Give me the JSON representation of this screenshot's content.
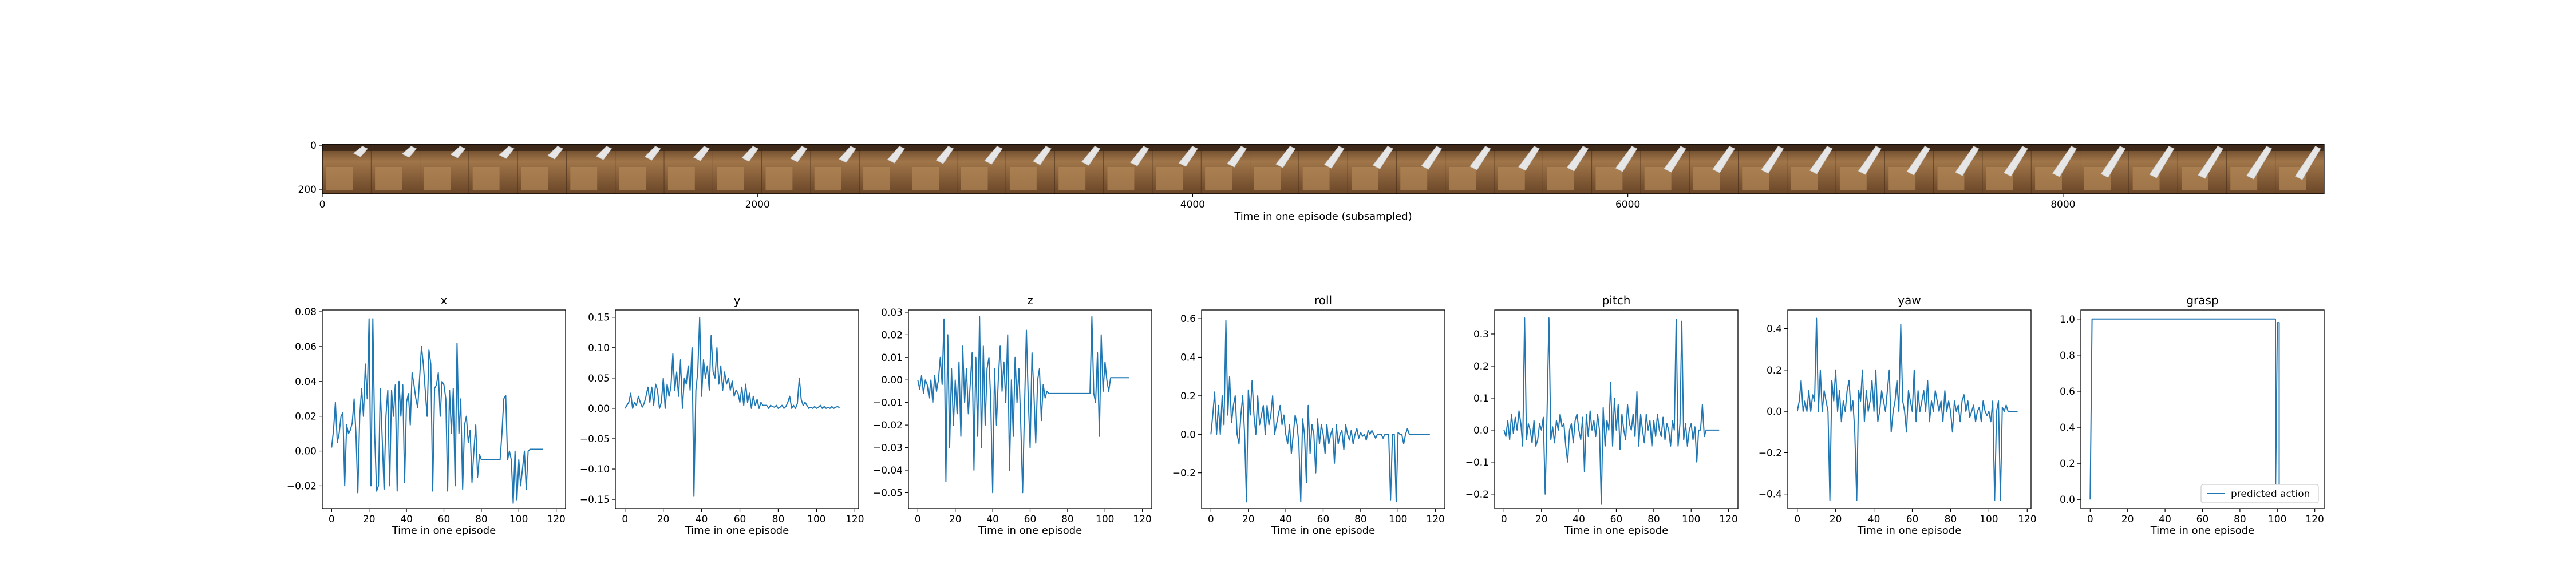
{
  "filmstrip": {
    "xlabel": "Time in one episode (subsampled)",
    "x_ticks": [
      "0",
      "2000",
      "4000",
      "6000",
      "8000"
    ],
    "x_tick_values": [
      0,
      2000,
      4000,
      6000,
      8000
    ],
    "x_range": [
      0,
      9200
    ],
    "y_ticks": [
      "0",
      "200"
    ],
    "frame_count": 41
  },
  "chart_data": [
    {
      "type": "line",
      "title": "x",
      "xlabel": "Time in one episode",
      "ylabel": "",
      "xlim": [
        -5,
        125
      ],
      "ylim": [
        -0.033,
        0.081
      ],
      "x_ticks": [
        0,
        20,
        40,
        60,
        80,
        100,
        120
      ],
      "y_ticks": [
        -0.02,
        0.0,
        0.02,
        0.04,
        0.06,
        0.08
      ],
      "y_tick_labels": [
        "−0.02",
        "0.00",
        "0.02",
        "0.04",
        "0.06",
        "0.08"
      ],
      "series": [
        {
          "values": [
            0.002,
            0.012,
            0.028,
            0.005,
            0.01,
            0.02,
            0.022,
            -0.02,
            0.015,
            0.01,
            0.012,
            0.016,
            0.03,
            0.01,
            -0.024,
            0.02,
            0.036,
            0.02,
            0.05,
            0.03,
            0.076,
            -0.02,
            0.076,
            0.01,
            -0.023,
            -0.02,
            0.036,
            0.008,
            -0.022,
            0.02,
            0.035,
            -0.02,
            0.035,
            0.02,
            0.038,
            -0.023,
            0.04,
            0.02,
            0.038,
            -0.018,
            0.028,
            0.033,
            0.015,
            0.045,
            0.038,
            0.03,
            0.025,
            0.042,
            0.06,
            0.05,
            0.035,
            0.02,
            0.058,
            0.05,
            -0.023,
            0.036,
            0.038,
            0.045,
            0.02,
            0.04,
            0.038,
            0.03,
            -0.023,
            0.035,
            0.01,
            0.036,
            -0.02,
            0.062,
            0.01,
            0.03,
            -0.022,
            0.015,
            0.02,
            0.005,
            0.012,
            -0.018,
            0.0,
            0.015,
            -0.015,
            -0.002,
            -0.005,
            -0.005,
            -0.005,
            -0.005,
            -0.005,
            -0.005,
            -0.005,
            -0.005,
            -0.005,
            -0.005,
            -0.005,
            0.01,
            0.03,
            0.032,
            -0.005,
            0.0,
            -0.005,
            -0.03,
            0.0,
            -0.028,
            -0.005,
            -0.02,
            -0.01,
            0.0,
            -0.022,
            0.0,
            0.001,
            0.001,
            0.001,
            0.001,
            0.001,
            0.001,
            0.001,
            0.001
          ]
        }
      ]
    },
    {
      "type": "line",
      "title": "y",
      "xlabel": "Time in one episode",
      "ylabel": "",
      "xlim": [
        -5,
        122
      ],
      "ylim": [
        -0.165,
        0.162
      ],
      "x_ticks": [
        0,
        20,
        40,
        60,
        80,
        100,
        120
      ],
      "y_ticks": [
        -0.15,
        -0.1,
        -0.05,
        0.0,
        0.05,
        0.1,
        0.15
      ],
      "y_tick_labels": [
        "−0.15",
        "−0.10",
        "−0.05",
        "0.00",
        "0.05",
        "0.10",
        "0.15"
      ],
      "series": [
        {
          "values": [
            0.0,
            0.005,
            0.01,
            0.025,
            0.0,
            0.01,
            0.005,
            0.02,
            0.01,
            0.002,
            0.008,
            0.02,
            0.035,
            0.01,
            0.035,
            0.005,
            0.04,
            0.03,
            0.0,
            0.01,
            0.05,
            0.0,
            0.04,
            0.02,
            0.035,
            0.09,
            0.03,
            0.06,
            0.02,
            0.08,
            0.0,
            0.05,
            0.04,
            0.07,
            0.03,
            0.1,
            -0.145,
            0.03,
            0.06,
            0.15,
            0.02,
            0.08,
            0.05,
            0.07,
            0.03,
            0.12,
            0.06,
            0.05,
            0.1,
            0.04,
            0.07,
            0.03,
            0.06,
            0.04,
            0.05,
            0.03,
            0.045,
            0.02,
            0.03,
            0.025,
            0.01,
            0.035,
            0.005,
            0.04,
            0.01,
            0.025,
            0.0,
            0.02,
            0.005,
            0.015,
            0.0,
            0.01,
            0.005,
            0.005,
            0.005,
            0.0,
            0.005,
            0.003,
            0.002,
            0.005,
            0.0,
            0.002,
            0.005,
            0.0,
            0.003,
            0.01,
            0.02,
            0.0,
            0.005,
            0.0,
            0.008,
            0.05,
            0.015,
            0.005,
            0.01,
            0.005,
            0.0,
            0.002,
            0.0,
            0.003,
            0.0,
            0.002,
            0.005,
            0.0,
            0.003,
            0.0,
            0.002,
            0.0,
            0.003,
            0.0,
            0.002,
            0.003,
            0.001
          ]
        }
      ]
    },
    {
      "type": "line",
      "title": "z",
      "xlabel": "Time in one episode",
      "ylabel": "",
      "xlim": [
        -5,
        125
      ],
      "ylim": [
        -0.057,
        0.031
      ],
      "x_ticks": [
        0,
        20,
        40,
        60,
        80,
        100,
        120
      ],
      "y_ticks": [
        -0.05,
        -0.04,
        -0.03,
        -0.02,
        -0.01,
        0.0,
        0.01,
        0.02,
        0.03
      ],
      "y_tick_labels": [
        "−0.05",
        "−0.04",
        "−0.03",
        "−0.02",
        "−0.01",
        "0.00",
        "0.01",
        "0.02",
        "0.03"
      ],
      "series": [
        {
          "values": [
            0.0,
            -0.004,
            0.002,
            -0.006,
            0.0,
            -0.002,
            -0.008,
            0.0,
            -0.01,
            0.002,
            -0.005,
            0.0,
            0.01,
            -0.002,
            0.027,
            -0.045,
            0.02,
            -0.03,
            0.005,
            -0.02,
            0.0,
            -0.015,
            0.008,
            -0.025,
            0.015,
            -0.01,
            0.005,
            -0.015,
            -0.002,
            0.012,
            -0.04,
            0.01,
            -0.025,
            0.028,
            -0.03,
            0.015,
            -0.02,
            0.005,
            0.01,
            -0.01,
            -0.05,
            0.005,
            -0.02,
            0.0,
            0.015,
            -0.005,
            0.008,
            -0.01,
            0.02,
            -0.04,
            0.0,
            -0.025,
            0.01,
            -0.01,
            0.005,
            -0.02,
            -0.05,
            -0.012,
            0.022,
            -0.008,
            -0.03,
            0.012,
            -0.005,
            -0.028,
            0.0,
            0.005,
            -0.018,
            -0.002,
            -0.008,
            -0.005,
            -0.006,
            -0.006,
            -0.006,
            -0.006,
            -0.006,
            -0.006,
            -0.006,
            -0.006,
            -0.006,
            -0.006,
            -0.006,
            -0.006,
            -0.006,
            -0.006,
            -0.006,
            -0.006,
            -0.006,
            -0.006,
            -0.006,
            -0.006,
            -0.006,
            -0.006,
            -0.006,
            0.028,
            -0.006,
            -0.01,
            0.012,
            -0.025,
            0.02,
            -0.005,
            0.008,
            0.0,
            -0.005,
            0.001,
            0.001,
            0.001,
            0.001,
            0.001,
            0.001,
            0.001,
            0.001,
            0.001,
            0.001,
            0.001
          ]
        }
      ]
    },
    {
      "type": "line",
      "title": "roll",
      "xlabel": "Time in one episode",
      "ylabel": "",
      "xlim": [
        -5,
        125
      ],
      "ylim": [
        -0.385,
        0.645
      ],
      "x_ticks": [
        0,
        20,
        40,
        60,
        80,
        100,
        120
      ],
      "y_ticks": [
        -0.2,
        0.0,
        0.2,
        0.4,
        0.6
      ],
      "y_tick_labels": [
        "−0.2",
        "0.0",
        "0.2",
        "0.4",
        "0.6"
      ],
      "series": [
        {
          "values": [
            0.0,
            0.1,
            0.22,
            0.0,
            0.15,
            0.0,
            0.2,
            0.05,
            0.59,
            0.1,
            0.3,
            0.06,
            0.15,
            0.2,
            0.0,
            -0.05,
            0.1,
            0.2,
            0.0,
            -0.35,
            0.23,
            0.1,
            0.28,
            0.1,
            0.0,
            0.2,
            0.05,
            0.1,
            0.15,
            0.0,
            0.15,
            0.05,
            0.1,
            0.2,
            0.0,
            0.05,
            0.1,
            0.15,
            0.05,
            0.1,
            0.0,
            -0.05,
            0.05,
            -0.1,
            0.0,
            0.1,
            0.05,
            -0.05,
            -0.35,
            0.08,
            0.0,
            -0.25,
            0.15,
            -0.1,
            0.05,
            0.0,
            -0.2,
            0.08,
            -0.05,
            0.05,
            0.0,
            -0.1,
            0.05,
            -0.05,
            0.0,
            0.03,
            -0.15,
            0.05,
            -0.05,
            0.0,
            0.02,
            -0.08,
            0.05,
            0.0,
            -0.03,
            0.02,
            -0.05,
            0.0,
            0.03,
            -0.02,
            0.01,
            -0.01,
            0.0,
            -0.03,
            0.02,
            0.0,
            0.02,
            0.0,
            -0.02,
            0.0,
            0.0,
            0.0,
            -0.02,
            0.0,
            0.0,
            0.0,
            -0.34,
            0.0,
            0.0,
            -0.35,
            0.01,
            0.0,
            0.0,
            -0.05,
            0.0,
            0.03,
            0.0,
            0.0,
            0.0,
            0.0,
            0.0,
            0.0,
            0.0,
            0.0,
            0.0,
            0.0,
            0.0,
            0.0
          ]
        }
      ]
    },
    {
      "type": "line",
      "title": "pitch",
      "xlabel": "Time in one episode",
      "ylabel": "",
      "xlim": [
        -5,
        125
      ],
      "ylim": [
        -0.245,
        0.375
      ],
      "x_ticks": [
        0,
        20,
        40,
        60,
        80,
        100,
        120
      ],
      "y_ticks": [
        -0.2,
        -0.1,
        0.0,
        0.1,
        0.2,
        0.3
      ],
      "y_tick_labels": [
        "−0.2",
        "−0.1",
        "0.0",
        "0.1",
        "0.2",
        "0.3"
      ],
      "series": [
        {
          "values": [
            0.0,
            -0.02,
            0.03,
            -0.03,
            0.05,
            -0.01,
            0.04,
            0.0,
            0.06,
            0.02,
            -0.05,
            0.35,
            -0.03,
            0.02,
            0.0,
            -0.04,
            0.03,
            -0.05,
            -0.03,
            0.02,
            0.0,
            0.04,
            -0.2,
            0.05,
            0.35,
            -0.03,
            0.01,
            -0.04,
            0.03,
            0.0,
            0.05,
            0.01,
            0.02,
            -0.05,
            -0.1,
            0.0,
            0.02,
            -0.04,
            0.03,
            0.05,
            0.0,
            -0.03,
            0.04,
            -0.13,
            0.05,
            -0.02,
            0.06,
            0.0,
            0.03,
            -0.02,
            0.05,
            0.0,
            -0.23,
            0.07,
            -0.05,
            0.03,
            0.0,
            0.15,
            -0.05,
            0.1,
            0.0,
            0.08,
            -0.06,
            0.05,
            0.0,
            -0.03,
            0.08,
            0.02,
            0.0,
            0.05,
            -0.02,
            0.12,
            -0.05,
            0.05,
            0.0,
            -0.04,
            0.05,
            0.0,
            0.03,
            -0.05,
            0.03,
            -0.02,
            0.05,
            0.0,
            -0.02,
            0.04,
            -0.03,
            0.02,
            0.0,
            -0.05,
            0.03,
            0.0,
            0.345,
            -0.05,
            0.02,
            0.34,
            -0.03,
            0.02,
            -0.05,
            0.0,
            0.02,
            -0.03,
            0.01,
            -0.1,
            0.0,
            0.0,
            0.08,
            -0.02,
            0.0,
            0.0,
            0.0,
            0.0,
            0.0,
            0.0,
            0.0,
            0.0
          ]
        }
      ]
    },
    {
      "type": "line",
      "title": "yaw",
      "xlabel": "Time in one episode",
      "ylabel": "",
      "xlim": [
        -5,
        122
      ],
      "ylim": [
        -0.47,
        0.49
      ],
      "x_ticks": [
        0,
        20,
        40,
        60,
        80,
        100,
        120
      ],
      "y_ticks": [
        -0.4,
        -0.2,
        0.0,
        0.2,
        0.4
      ],
      "y_tick_labels": [
        "−0.4",
        "−0.2",
        "0.0",
        "0.2",
        "0.4"
      ],
      "series": [
        {
          "values": [
            0.0,
            0.05,
            0.15,
            0.0,
            0.05,
            0.0,
            0.1,
            0.0,
            0.08,
            0.05,
            0.45,
            0.0,
            0.2,
            0.0,
            0.1,
            0.05,
            0.0,
            -0.43,
            0.15,
            0.05,
            0.2,
            0.0,
            0.1,
            -0.05,
            0.05,
            0.0,
            0.1,
            0.15,
            0.0,
            0.05,
            -0.1,
            -0.43,
            0.1,
            0.05,
            0.2,
            -0.05,
            0.1,
            0.0,
            0.05,
            0.15,
            0.0,
            0.2,
            -0.05,
            0.0,
            0.1,
            0.05,
            0.0,
            0.1,
            0.2,
            -0.1,
            0.0,
            0.05,
            0.15,
            0.0,
            0.42,
            0.05,
            0.0,
            -0.1,
            0.1,
            0.05,
            0.0,
            0.2,
            -0.05,
            0.1,
            0.0,
            0.05,
            0.1,
            0.0,
            0.15,
            -0.05,
            0.05,
            0.0,
            0.1,
            0.05,
            0.0,
            0.05,
            -0.05,
            0.1,
            0.0,
            0.05,
            0.0,
            -0.1,
            0.05,
            0.0,
            0.03,
            -0.05,
            0.05,
            0.08,
            0.0,
            0.05,
            -0.03,
            0.0,
            0.03,
            -0.05,
            0.0,
            0.02,
            -0.05,
            0.05,
            0.0,
            -0.02,
            0.0,
            -0.05,
            0.05,
            -0.43,
            0.0,
            0.05,
            -0.43,
            0.02,
            0.0,
            0.03,
            0.0,
            0.0,
            0.0,
            0.0,
            0.0,
            0.0
          ]
        }
      ]
    },
    {
      "type": "line",
      "title": "grasp",
      "xlabel": "Time in one episode",
      "ylabel": "",
      "xlim": [
        -5,
        125
      ],
      "ylim": [
        -0.05,
        1.05
      ],
      "x_ticks": [
        0,
        20,
        40,
        60,
        80,
        100,
        120
      ],
      "y_ticks": [
        0.0,
        0.2,
        0.4,
        0.6,
        0.8,
        1.0
      ],
      "y_tick_labels": [
        "0.0",
        "0.2",
        "0.4",
        "0.6",
        "0.8",
        "1.0"
      ],
      "legend": "lower right",
      "series": [
        {
          "name": "predicted action",
          "x": [
            0,
            0,
            1,
            99,
            99,
            100,
            101,
            101,
            102,
            120
          ],
          "values": [
            0,
            0,
            1,
            1,
            0,
            0.98,
            0.98,
            0,
            0,
            0
          ]
        }
      ]
    }
  ]
}
